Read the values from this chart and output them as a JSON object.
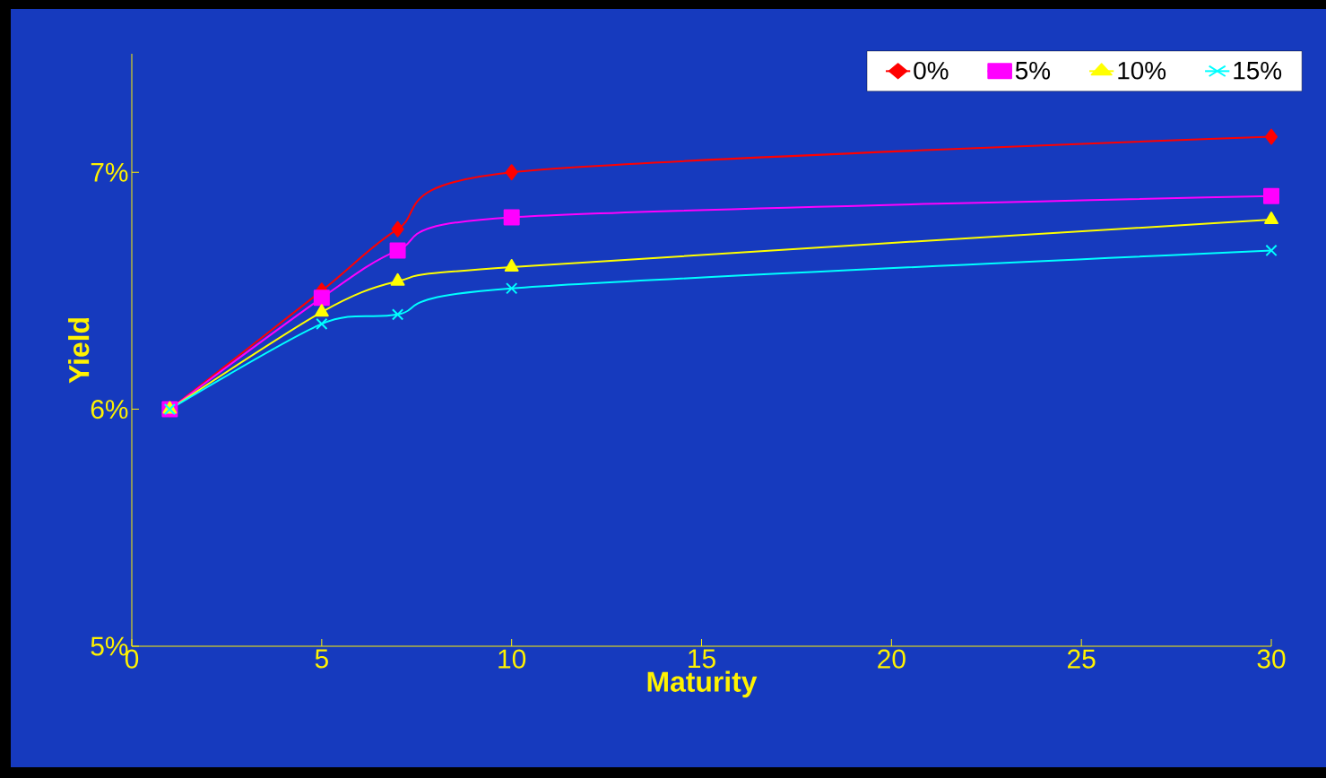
{
  "chart_data": {
    "type": "line",
    "xlabel": "Maturity",
    "ylabel": "Yield",
    "x": [
      1,
      5,
      7,
      10,
      30
    ],
    "series": [
      {
        "name": "0%",
        "color": "#ff0000",
        "marker": "diamond",
        "values": [
          6.0,
          6.5,
          6.76,
          7.0,
          7.15
        ]
      },
      {
        "name": "5%",
        "color": "#ff00ff",
        "marker": "square",
        "values": [
          6.0,
          6.47,
          6.67,
          6.81,
          6.9
        ]
      },
      {
        "name": "10%",
        "color": "#ffff00",
        "marker": "triangle",
        "values": [
          6.0,
          6.41,
          6.54,
          6.6,
          6.8
        ]
      },
      {
        "name": "15%",
        "color": "#00ffff",
        "marker": "cross",
        "values": [
          6.0,
          6.36,
          6.4,
          6.51,
          6.67
        ]
      }
    ],
    "xlim": [
      0,
      30
    ],
    "ylim": [
      5,
      7.5
    ],
    "xticks": [
      0,
      5,
      10,
      15,
      20,
      25,
      30
    ],
    "yticks": [
      {
        "value": 5,
        "label": "5%"
      },
      {
        "value": 6,
        "label": "6%"
      },
      {
        "value": 7,
        "label": "7%"
      }
    ],
    "grid": false,
    "legend": "top right"
  }
}
